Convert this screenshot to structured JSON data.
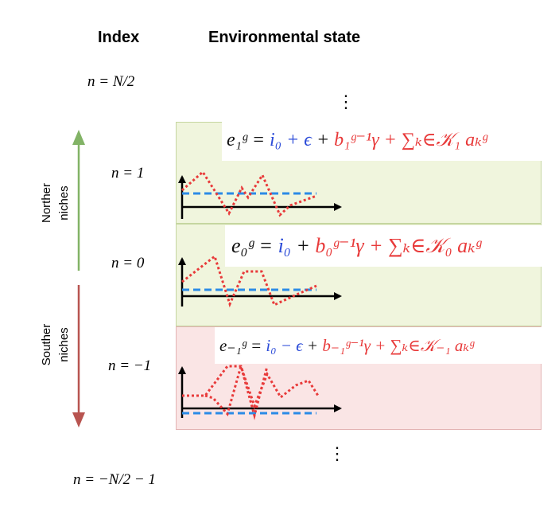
{
  "headers": {
    "index": "Index",
    "state": "Environmental state"
  },
  "index_labels": {
    "top": "n = N/2",
    "n1": "n = 1",
    "n0": "n = 0",
    "nm1": "n = −1",
    "bottom": "n = −N/2 − 1"
  },
  "vdots": "⋮",
  "groups": {
    "north_line1": "Norther",
    "north_line2": "niches",
    "south_line1": "Souther",
    "south_line2": "niches"
  },
  "equations": {
    "n1": {
      "lhs": "e₁ᵍ =",
      "baseline": "i₀",
      "noise": "+ ϵ",
      "sep": "+",
      "trend": "b₁ᵍ⁻¹γ + ∑ₖ∈𝒦₁ aₖᵍ"
    },
    "n0": {
      "lhs": "e₀ᵍ =",
      "baseline": "i₀",
      "noise": "",
      "sep": "+",
      "trend": "b₀ᵍ⁻¹γ + ∑ₖ∈𝒦₀ aₖᵍ"
    },
    "nm1": {
      "lhs": "e₋₁ᵍ =",
      "baseline": "i₀",
      "noise": "− ϵ",
      "sep": "+",
      "trend": "b₋₁ᵍ⁻¹γ + ∑ₖ∈𝒦₋₁ aₖᵍ"
    }
  },
  "colors": {
    "north_panel": "#f0f5dd",
    "south_panel": "#fae5e5",
    "north_arrow": "#82b366",
    "south_arrow": "#b85450",
    "baseline": "#2b8be6",
    "fluctuation": "#e83a3a"
  }
}
